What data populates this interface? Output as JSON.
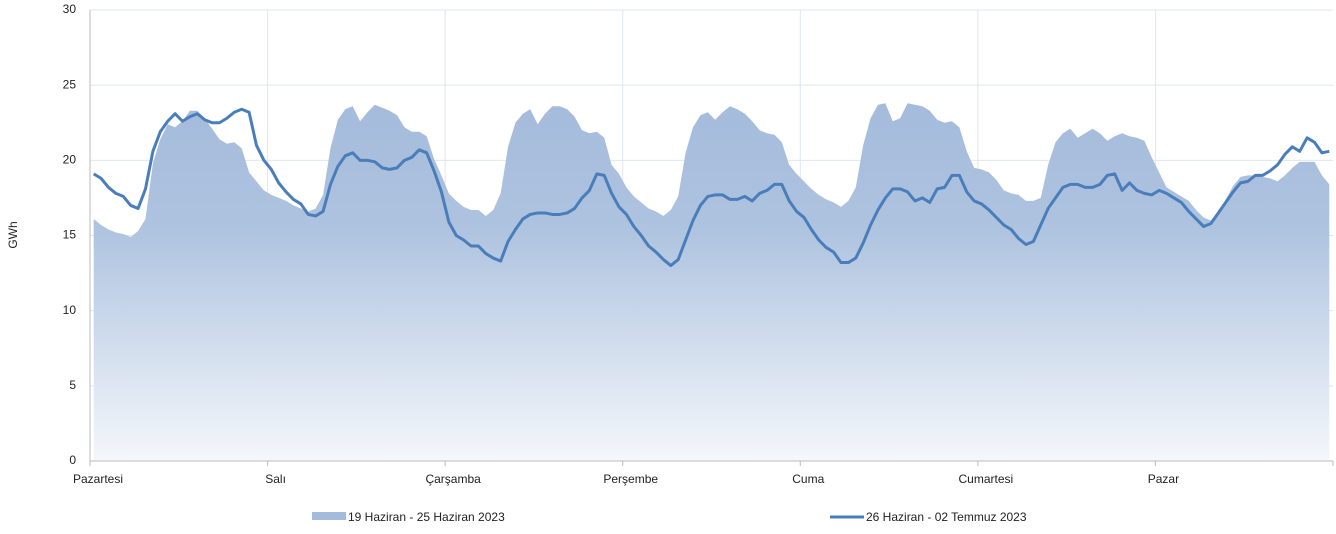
{
  "chart_data": {
    "type": "line",
    "ylabel": "GWh",
    "categories": [
      "Pazartesi",
      null,
      null,
      null,
      null,
      null,
      null,
      null,
      null,
      null,
      null,
      null,
      null,
      null,
      null,
      null,
      null,
      null,
      null,
      null,
      null,
      null,
      null,
      null,
      "Salı",
      null,
      null,
      null,
      null,
      null,
      null,
      null,
      null,
      null,
      null,
      null,
      null,
      null,
      null,
      null,
      null,
      null,
      null,
      null,
      null,
      null,
      null,
      null,
      "Çarşamba",
      null,
      null,
      null,
      null,
      null,
      null,
      null,
      null,
      null,
      null,
      null,
      null,
      null,
      null,
      null,
      null,
      null,
      null,
      null,
      null,
      null,
      null,
      null,
      "Perşembe",
      null,
      null,
      null,
      null,
      null,
      null,
      null,
      null,
      null,
      null,
      null,
      null,
      null,
      null,
      null,
      null,
      null,
      null,
      null,
      null,
      null,
      null,
      null,
      "Cuma",
      null,
      null,
      null,
      null,
      null,
      null,
      null,
      null,
      null,
      null,
      null,
      null,
      null,
      null,
      null,
      null,
      null,
      null,
      null,
      null,
      null,
      null,
      null,
      "Cumartesi",
      null,
      null,
      null,
      null,
      null,
      null,
      null,
      null,
      null,
      null,
      null,
      null,
      null,
      null,
      null,
      null,
      null,
      null,
      null,
      null,
      null,
      null,
      null,
      "Pazar",
      null,
      null,
      null,
      null,
      null,
      null,
      null,
      null,
      null,
      null,
      null,
      null,
      null,
      null,
      null,
      null,
      null,
      null,
      null,
      null,
      null,
      null,
      null
    ],
    "series": [
      {
        "name": "19 Haziran - 25 Haziran 2023",
        "style": "area",
        "color": "#a4bbdb",
        "values": [
          16.1,
          15.7,
          15.4,
          15.2,
          15.1,
          14.9,
          15.3,
          16.1,
          19.8,
          21.4,
          22.4,
          22.2,
          22.6,
          23.3,
          23.3,
          22.8,
          22.1,
          21.4,
          21.1,
          21.2,
          20.8,
          19.2,
          18.6,
          18.0,
          17.7,
          17.5,
          17.3,
          17.0,
          16.8,
          16.6,
          16.8,
          17.7,
          20.8,
          22.7,
          23.4,
          23.6,
          22.6,
          23.2,
          23.7,
          23.5,
          23.3,
          23.0,
          22.2,
          21.9,
          21.9,
          21.6,
          20.1,
          19.0,
          17.8,
          17.3,
          16.9,
          16.7,
          16.7,
          16.3,
          16.7,
          17.8,
          20.9,
          22.5,
          23.1,
          23.4,
          22.4,
          23.1,
          23.6,
          23.6,
          23.4,
          22.9,
          22.0,
          21.8,
          21.9,
          21.5,
          19.7,
          19.1,
          18.2,
          17.6,
          17.2,
          16.8,
          16.6,
          16.3,
          16.7,
          17.6,
          20.5,
          22.2,
          23.0,
          23.2,
          22.7,
          23.2,
          23.6,
          23.4,
          23.1,
          22.6,
          22.0,
          21.8,
          21.7,
          21.2,
          19.7,
          19.1,
          18.6,
          18.1,
          17.7,
          17.4,
          17.2,
          16.9,
          17.3,
          18.2,
          21.0,
          22.8,
          23.7,
          23.8,
          22.6,
          22.8,
          23.8,
          23.7,
          23.6,
          23.3,
          22.7,
          22.5,
          22.6,
          22.2,
          20.6,
          19.5,
          19.4,
          19.2,
          18.7,
          18.0,
          17.8,
          17.7,
          17.3,
          17.3,
          17.5,
          19.7,
          21.2,
          21.8,
          22.1,
          21.5,
          21.8,
          22.1,
          21.8,
          21.3,
          21.6,
          21.8,
          21.6,
          21.5,
          21.3,
          20.2,
          19.2,
          18.2,
          17.9,
          17.6,
          17.3,
          16.7,
          16.2,
          16.0,
          16.6,
          17.4,
          18.3,
          18.9,
          19.0,
          19.0,
          18.9,
          18.8,
          18.6,
          19.0,
          19.5,
          19.9,
          19.9,
          19.9,
          19.0,
          18.4
        ]
      },
      {
        "name": "26 Haziran - 02 Temmuz 2023",
        "style": "line",
        "color": "#4a7ebb",
        "values": [
          19.1,
          18.8,
          18.2,
          17.8,
          17.6,
          17.0,
          16.8,
          18.1,
          20.6,
          21.9,
          22.6,
          23.1,
          22.6,
          22.9,
          23.1,
          22.7,
          22.5,
          22.5,
          22.8,
          23.2,
          23.4,
          23.2,
          21.0,
          20.0,
          19.4,
          18.5,
          17.9,
          17.4,
          17.1,
          16.4,
          16.3,
          16.6,
          18.4,
          19.6,
          20.3,
          20.5,
          20.0,
          20.0,
          19.9,
          19.5,
          19.4,
          19.5,
          20.0,
          20.2,
          20.7,
          20.5,
          19.3,
          17.9,
          15.9,
          15.0,
          14.7,
          14.3,
          14.3,
          13.8,
          13.5,
          13.3,
          14.6,
          15.4,
          16.1,
          16.4,
          16.5,
          16.5,
          16.4,
          16.4,
          16.5,
          16.8,
          17.5,
          18.0,
          19.1,
          19.0,
          17.8,
          16.9,
          16.4,
          15.6,
          15.0,
          14.3,
          13.9,
          13.4,
          13.0,
          13.4,
          14.7,
          16.0,
          17.0,
          17.6,
          17.7,
          17.7,
          17.4,
          17.4,
          17.6,
          17.3,
          17.8,
          18.0,
          18.4,
          18.4,
          17.3,
          16.6,
          16.2,
          15.4,
          14.7,
          14.2,
          13.9,
          13.2,
          13.2,
          13.5,
          14.5,
          15.7,
          16.7,
          17.5,
          18.1,
          18.1,
          17.9,
          17.3,
          17.5,
          17.2,
          18.1,
          18.2,
          19.0,
          19.0,
          17.9,
          17.3,
          17.1,
          16.7,
          16.2,
          15.7,
          15.4,
          14.8,
          14.4,
          14.6,
          15.7,
          16.8,
          17.5,
          18.2,
          18.4,
          18.4,
          18.2,
          18.2,
          18.4,
          19.0,
          19.1,
          18.0,
          18.5,
          18.0,
          17.8,
          17.7,
          18.0,
          17.8,
          17.5,
          17.2,
          16.6,
          16.1,
          15.6,
          15.8,
          16.5,
          17.2,
          17.9,
          18.5,
          18.6,
          19.0,
          19.0,
          19.3,
          19.7,
          20.4,
          20.9,
          20.6,
          21.5,
          21.2,
          20.5,
          20.6
        ]
      }
    ],
    "ylim": [
      0,
      30
    ],
    "yticks": [
      0,
      5,
      10,
      15,
      20,
      25,
      30
    ],
    "grid": true
  }
}
